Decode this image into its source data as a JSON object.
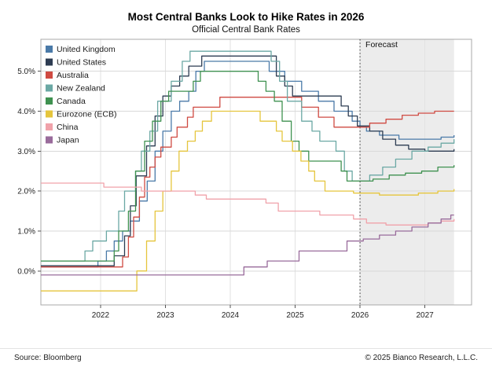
{
  "header": {
    "title": "Most Central Banks Look to Hike Rates in 2026",
    "subtitle": "Official Central Bank Rates"
  },
  "footer": {
    "source": "Source: Bloomberg",
    "copyright": "© 2025 Bianco Research, L.L.C."
  },
  "chart_data": {
    "type": "line",
    "step": true,
    "title": "Most Central Banks Look to Hike Rates in 2026",
    "subtitle": "Official Central Bank Rates",
    "xlabel": "",
    "ylabel": "",
    "grid": true,
    "legend_position": "top-left",
    "xlim": [
      2021.08,
      2027.72
    ],
    "ylim": [
      -0.85,
      5.8
    ],
    "x_ticks": [
      2022,
      2023,
      2024,
      2025,
      2026,
      2027
    ],
    "x_tick_labels": [
      "2022",
      "2023",
      "2024",
      "2025",
      "2026",
      "2027"
    ],
    "y_ticks": [
      0,
      1,
      2,
      3,
      4,
      5
    ],
    "y_tick_labels": [
      "0.0%",
      "1.0%",
      "2.0%",
      "3.0%",
      "4.0%",
      "5.0%"
    ],
    "forecast": {
      "label": "Forecast",
      "start": 2026.0,
      "end": 2027.45,
      "fill": "#ececec"
    },
    "series": [
      {
        "id": "united-kingdom",
        "name": "United Kingdom",
        "color": "#4a7aa8",
        "points": [
          [
            2021.08,
            0.1
          ],
          [
            2021.96,
            0.25
          ],
          [
            2022.09,
            0.5
          ],
          [
            2022.21,
            0.75
          ],
          [
            2022.34,
            1.0
          ],
          [
            2022.46,
            1.25
          ],
          [
            2022.6,
            1.75
          ],
          [
            2022.72,
            2.25
          ],
          [
            2022.84,
            3.0
          ],
          [
            2022.96,
            3.5
          ],
          [
            2023.09,
            4.0
          ],
          [
            2023.22,
            4.25
          ],
          [
            2023.36,
            4.5
          ],
          [
            2023.47,
            5.0
          ],
          [
            2023.6,
            5.25
          ],
          [
            2024.6,
            5.0
          ],
          [
            2024.84,
            4.75
          ],
          [
            2025.1,
            4.5
          ],
          [
            2025.36,
            4.25
          ],
          [
            2025.6,
            4.0
          ],
          [
            2025.88,
            3.75
          ],
          [
            2026.0,
            3.6
          ],
          [
            2026.1,
            3.5
          ],
          [
            2026.3,
            3.4
          ],
          [
            2026.6,
            3.3
          ],
          [
            2027.0,
            3.3
          ],
          [
            2027.25,
            3.35
          ],
          [
            2027.45,
            3.4
          ]
        ]
      },
      {
        "id": "united-states",
        "name": "United States",
        "color": "#2d3c52",
        "points": [
          [
            2021.08,
            0.13
          ],
          [
            2022.21,
            0.38
          ],
          [
            2022.37,
            0.88
          ],
          [
            2022.46,
            1.63
          ],
          [
            2022.55,
            2.38
          ],
          [
            2022.71,
            3.13
          ],
          [
            2022.84,
            3.88
          ],
          [
            2022.96,
            4.38
          ],
          [
            2023.09,
            4.63
          ],
          [
            2023.22,
            4.88
          ],
          [
            2023.36,
            5.13
          ],
          [
            2023.56,
            5.38
          ],
          [
            2024.71,
            4.88
          ],
          [
            2024.84,
            4.63
          ],
          [
            2024.96,
            4.38
          ],
          [
            2025.71,
            4.13
          ],
          [
            2025.82,
            3.88
          ],
          [
            2025.96,
            3.63
          ],
          [
            2026.15,
            3.5
          ],
          [
            2026.35,
            3.3
          ],
          [
            2026.55,
            3.15
          ],
          [
            2026.75,
            3.05
          ],
          [
            2027.0,
            3.0
          ],
          [
            2027.3,
            3.0
          ],
          [
            2027.45,
            3.05
          ]
        ]
      },
      {
        "id": "australia",
        "name": "Australia",
        "color": "#cf4a42",
        "points": [
          [
            2021.08,
            0.1
          ],
          [
            2022.34,
            0.35
          ],
          [
            2022.43,
            0.85
          ],
          [
            2022.51,
            1.35
          ],
          [
            2022.6,
            1.85
          ],
          [
            2022.68,
            2.35
          ],
          [
            2022.76,
            2.6
          ],
          [
            2022.84,
            2.85
          ],
          [
            2022.93,
            3.1
          ],
          [
            2023.09,
            3.35
          ],
          [
            2023.18,
            3.6
          ],
          [
            2023.34,
            3.85
          ],
          [
            2023.43,
            4.1
          ],
          [
            2023.84,
            4.35
          ],
          [
            2025.1,
            4.1
          ],
          [
            2025.36,
            3.85
          ],
          [
            2025.6,
            3.6
          ],
          [
            2026.15,
            3.7
          ],
          [
            2026.4,
            3.8
          ],
          [
            2026.65,
            3.9
          ],
          [
            2026.9,
            3.95
          ],
          [
            2027.15,
            4.0
          ],
          [
            2027.45,
            4.0
          ]
        ]
      },
      {
        "id": "new-zealand",
        "name": "New Zealand",
        "color": "#6ba8a4",
        "points": [
          [
            2021.08,
            0.25
          ],
          [
            2021.76,
            0.5
          ],
          [
            2021.88,
            0.75
          ],
          [
            2022.09,
            1.0
          ],
          [
            2022.28,
            1.5
          ],
          [
            2022.37,
            2.0
          ],
          [
            2022.54,
            2.5
          ],
          [
            2022.63,
            3.0
          ],
          [
            2022.76,
            3.5
          ],
          [
            2022.88,
            4.25
          ],
          [
            2023.09,
            4.75
          ],
          [
            2023.26,
            5.25
          ],
          [
            2023.38,
            5.5
          ],
          [
            2024.63,
            5.25
          ],
          [
            2024.76,
            4.75
          ],
          [
            2024.88,
            4.25
          ],
          [
            2025.1,
            3.75
          ],
          [
            2025.26,
            3.5
          ],
          [
            2025.38,
            3.25
          ],
          [
            2025.63,
            3.0
          ],
          [
            2025.76,
            2.5
          ],
          [
            2025.88,
            2.25
          ],
          [
            2026.15,
            2.4
          ],
          [
            2026.35,
            2.6
          ],
          [
            2026.55,
            2.8
          ],
          [
            2026.8,
            3.0
          ],
          [
            2027.05,
            3.1
          ],
          [
            2027.25,
            3.2
          ],
          [
            2027.45,
            3.3
          ]
        ]
      },
      {
        "id": "canada",
        "name": "Canada",
        "color": "#3f9150",
        "points": [
          [
            2021.08,
            0.25
          ],
          [
            2022.21,
            0.5
          ],
          [
            2022.28,
            1.0
          ],
          [
            2022.43,
            1.5
          ],
          [
            2022.54,
            2.5
          ],
          [
            2022.68,
            3.25
          ],
          [
            2022.8,
            3.75
          ],
          [
            2022.93,
            4.25
          ],
          [
            2023.05,
            4.5
          ],
          [
            2023.43,
            4.75
          ],
          [
            2023.54,
            5.0
          ],
          [
            2024.43,
            4.75
          ],
          [
            2024.55,
            4.5
          ],
          [
            2024.68,
            4.25
          ],
          [
            2024.8,
            3.75
          ],
          [
            2024.94,
            3.25
          ],
          [
            2025.06,
            3.0
          ],
          [
            2025.21,
            2.75
          ],
          [
            2025.71,
            2.5
          ],
          [
            2025.8,
            2.25
          ],
          [
            2026.2,
            2.3
          ],
          [
            2026.45,
            2.4
          ],
          [
            2026.7,
            2.45
          ],
          [
            2026.95,
            2.5
          ],
          [
            2027.2,
            2.6
          ],
          [
            2027.45,
            2.65
          ]
        ]
      },
      {
        "id": "eurozone-ecb",
        "name": "Eurozone (ECB)",
        "color": "#e5c53d",
        "points": [
          [
            2021.08,
            -0.5
          ],
          [
            2022.56,
            0.0
          ],
          [
            2022.71,
            0.75
          ],
          [
            2022.84,
            1.5
          ],
          [
            2022.96,
            2.0
          ],
          [
            2023.09,
            2.5
          ],
          [
            2023.21,
            3.0
          ],
          [
            2023.34,
            3.25
          ],
          [
            2023.46,
            3.5
          ],
          [
            2023.57,
            3.75
          ],
          [
            2023.71,
            4.0
          ],
          [
            2024.46,
            3.75
          ],
          [
            2024.71,
            3.5
          ],
          [
            2024.8,
            3.25
          ],
          [
            2024.96,
            3.0
          ],
          [
            2025.09,
            2.75
          ],
          [
            2025.21,
            2.5
          ],
          [
            2025.3,
            2.25
          ],
          [
            2025.46,
            2.0
          ],
          [
            2025.9,
            1.95
          ],
          [
            2026.3,
            1.9
          ],
          [
            2026.9,
            1.95
          ],
          [
            2027.2,
            2.0
          ],
          [
            2027.45,
            2.05
          ]
        ]
      },
      {
        "id": "china",
        "name": "China",
        "color": "#f0a2aa",
        "points": [
          [
            2021.08,
            2.2
          ],
          [
            2022.05,
            2.1
          ],
          [
            2022.63,
            2.0
          ],
          [
            2023.46,
            1.9
          ],
          [
            2023.63,
            1.8
          ],
          [
            2024.55,
            1.7
          ],
          [
            2024.74,
            1.5
          ],
          [
            2025.38,
            1.4
          ],
          [
            2025.9,
            1.3
          ],
          [
            2026.1,
            1.2
          ],
          [
            2026.4,
            1.15
          ],
          [
            2026.8,
            1.15
          ],
          [
            2027.05,
            1.2
          ],
          [
            2027.25,
            1.25
          ],
          [
            2027.45,
            1.3
          ]
        ]
      },
      {
        "id": "japan",
        "name": "Japan",
        "color": "#996b9b",
        "points": [
          [
            2021.08,
            -0.1
          ],
          [
            2024.21,
            0.1
          ],
          [
            2024.57,
            0.25
          ],
          [
            2025.06,
            0.5
          ],
          [
            2025.8,
            0.75
          ],
          [
            2026.05,
            0.8
          ],
          [
            2026.3,
            0.9
          ],
          [
            2026.55,
            1.0
          ],
          [
            2026.8,
            1.1
          ],
          [
            2027.05,
            1.2
          ],
          [
            2027.25,
            1.3
          ],
          [
            2027.4,
            1.4
          ],
          [
            2027.45,
            1.4
          ]
        ]
      }
    ]
  }
}
